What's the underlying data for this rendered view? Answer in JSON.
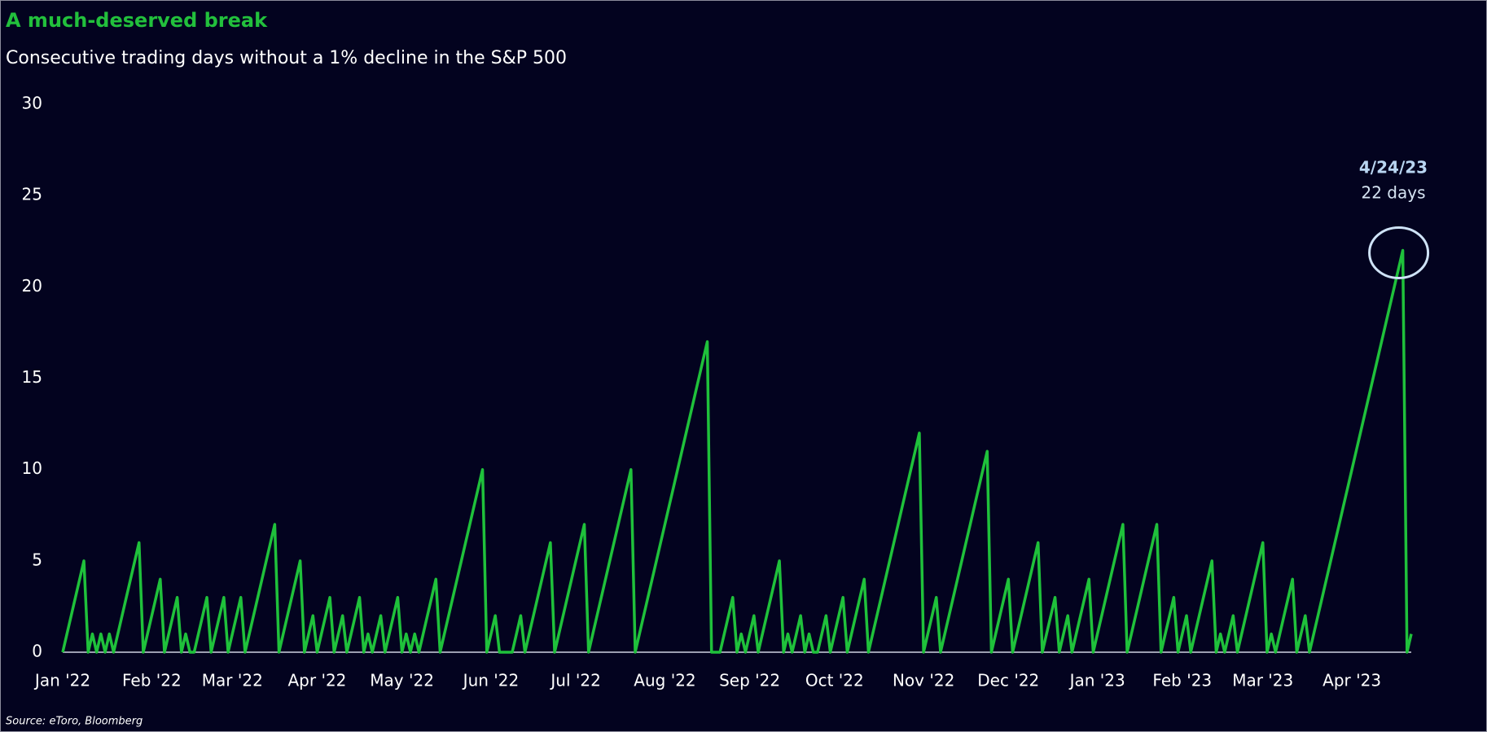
{
  "chart_data": {
    "type": "line",
    "title": "A much-deserved break",
    "subtitle": "Consecutive trading days without a 1% decline in the S&P 500",
    "source": "Source: eToro, Bloomberg",
    "color": "#1fc13b",
    "annotation": {
      "label": "4/24/23",
      "text": "22 days"
    },
    "values": [
      0,
      1,
      2,
      3,
      4,
      5,
      0,
      1,
      0,
      1,
      0,
      1,
      0,
      1,
      2,
      3,
      4,
      5,
      6,
      0,
      1,
      2,
      3,
      4,
      0,
      1,
      2,
      3,
      0,
      1,
      0,
      0,
      1,
      2,
      3,
      0,
      1,
      2,
      3,
      0,
      1,
      2,
      3,
      0,
      1,
      2,
      3,
      4,
      5,
      6,
      7,
      0,
      1,
      2,
      3,
      4,
      5,
      0,
      1,
      2,
      0,
      1,
      2,
      3,
      0,
      1,
      2,
      0,
      1,
      2,
      3,
      0,
      1,
      0,
      1,
      2,
      0,
      1,
      2,
      3,
      0,
      1,
      0,
      1,
      0,
      1,
      2,
      3,
      4,
      0,
      1,
      2,
      3,
      4,
      5,
      6,
      7,
      8,
      9,
      10,
      0,
      1,
      2,
      0,
      0,
      0,
      0,
      1,
      2,
      0,
      1,
      2,
      3,
      4,
      5,
      6,
      0,
      1,
      2,
      3,
      4,
      5,
      6,
      7,
      0,
      1,
      2,
      3,
      4,
      5,
      6,
      7,
      8,
      9,
      10,
      0,
      1,
      2,
      3,
      4,
      5,
      6,
      7,
      8,
      9,
      10,
      11,
      12,
      13,
      14,
      15,
      16,
      17,
      0,
      0,
      0,
      1,
      2,
      3,
      0,
      1,
      0,
      1,
      2,
      0,
      1,
      2,
      3,
      4,
      5,
      0,
      1,
      0,
      1,
      2,
      0,
      1,
      0,
      0,
      1,
      2,
      0,
      1,
      2,
      3,
      0,
      1,
      2,
      3,
      4,
      0,
      1,
      2,
      3,
      4,
      5,
      6,
      7,
      8,
      9,
      10,
      11,
      12,
      0,
      1,
      2,
      3,
      0,
      1,
      2,
      3,
      4,
      5,
      6,
      7,
      8,
      9,
      10,
      11,
      0,
      1,
      2,
      3,
      4,
      0,
      1,
      2,
      3,
      4,
      5,
      6,
      0,
      1,
      2,
      3,
      0,
      1,
      2,
      0,
      1,
      2,
      3,
      4,
      0,
      1,
      2,
      3,
      4,
      5,
      6,
      7,
      0,
      1,
      2,
      3,
      4,
      5,
      6,
      7,
      0,
      1,
      2,
      3,
      0,
      1,
      2,
      0,
      1,
      2,
      3,
      4,
      5,
      0,
      1,
      0,
      1,
      2,
      0,
      1,
      2,
      3,
      4,
      5,
      6,
      0,
      1,
      0,
      1,
      2,
      3,
      4,
      0,
      1,
      2,
      0,
      1,
      2,
      3,
      4,
      5,
      6,
      7,
      8,
      9,
      10,
      11,
      12,
      13,
      14,
      15,
      16,
      17,
      18,
      19,
      20,
      21,
      22,
      0,
      1
    ],
    "ylim": [
      0,
      30
    ],
    "yticks": [
      0,
      5,
      10,
      15,
      20,
      25,
      30
    ],
    "xticks": [
      {
        "value": 0,
        "label": "Jan '22"
      },
      {
        "value": 21,
        "label": "Feb '22"
      },
      {
        "value": 40,
        "label": "Mar '22"
      },
      {
        "value": 60,
        "label": "Apr '22"
      },
      {
        "value": 80,
        "label": "May '22"
      },
      {
        "value": 101,
        "label": "Jun '22"
      },
      {
        "value": 121,
        "label": "Jul '22"
      },
      {
        "value": 142,
        "label": "Aug '22"
      },
      {
        "value": 162,
        "label": "Sep '22"
      },
      {
        "value": 182,
        "label": "Oct '22"
      },
      {
        "value": 203,
        "label": "Nov '22"
      },
      {
        "value": 223,
        "label": "Dec '22"
      },
      {
        "value": 244,
        "label": "Jan '23"
      },
      {
        "value": 264,
        "label": "Feb '23"
      },
      {
        "value": 283,
        "label": "Mar '23"
      },
      {
        "value": 304,
        "label": "Apr '23"
      }
    ],
    "grid": false
  }
}
